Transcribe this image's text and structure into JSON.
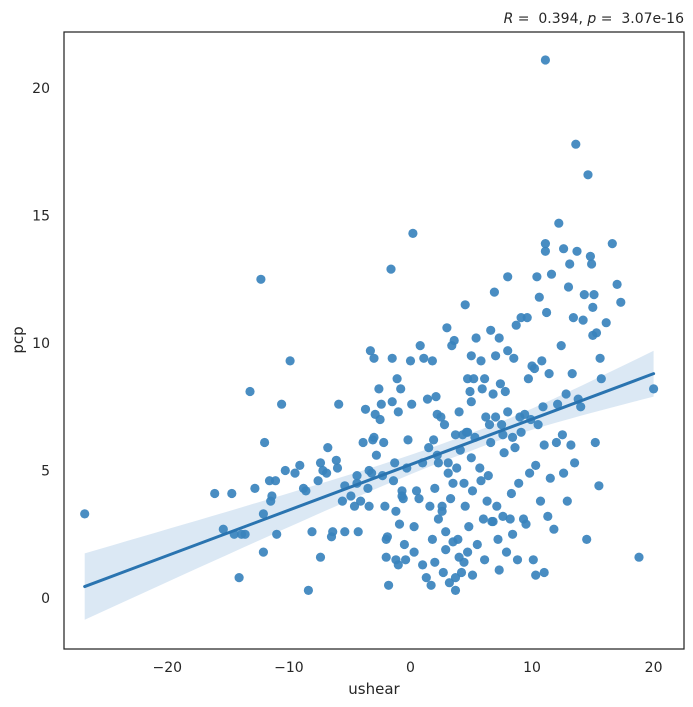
{
  "chart_data": {
    "type": "scatter",
    "title": "R =  0.394, p =  3.07e-16",
    "title_parts": {
      "r_symbol": "R",
      "r_text": " =  0.394, ",
      "p_symbol": "p",
      "p_text": " =  3.07e-16"
    },
    "xlabel": "ushear",
    "ylabel": "pcp",
    "xlim": [
      -28.5,
      22.5
    ],
    "ylim": [
      -2.0,
      22.2
    ],
    "xticks": [
      -20,
      -10,
      0,
      10,
      20
    ],
    "yticks": [
      0,
      5,
      10,
      15,
      20
    ],
    "grid": false,
    "colors": {
      "points": "#3a83bd",
      "line": "#2a74b0",
      "band": "#cfe0f0",
      "axis": "#262626"
    },
    "regression": {
      "x": [
        -26.8,
        20.0
      ],
      "y": [
        0.45,
        8.8
      ],
      "ci_lower": [
        -0.95,
        7.95
      ],
      "ci_upper": [
        1.65,
        9.75
      ],
      "ci_mid_x": 5.0,
      "ci_mid_half_width": 0.35
    },
    "points": [
      [
        -26.8,
        3.3
      ],
      [
        -16.1,
        4.1
      ],
      [
        -15.4,
        2.7
      ],
      [
        -14.7,
        4.1
      ],
      [
        -14.5,
        2.5
      ],
      [
        -14.1,
        0.8
      ],
      [
        -13.9,
        2.5
      ],
      [
        -13.6,
        2.5
      ],
      [
        -13.2,
        8.1
      ],
      [
        -12.8,
        4.3
      ],
      [
        -12.3,
        12.5
      ],
      [
        -12.1,
        1.8
      ],
      [
        -12.1,
        3.3
      ],
      [
        -12.0,
        6.1
      ],
      [
        -11.6,
        4.6
      ],
      [
        -11.5,
        3.8
      ],
      [
        -11.4,
        4.0
      ],
      [
        -11.1,
        4.6
      ],
      [
        -11.0,
        2.5
      ],
      [
        -10.6,
        7.6
      ],
      [
        -10.3,
        5.0
      ],
      [
        -9.9,
        9.3
      ],
      [
        -9.5,
        4.9
      ],
      [
        -9.1,
        5.2
      ],
      [
        -8.8,
        4.3
      ],
      [
        -8.6,
        4.2
      ],
      [
        -8.4,
        0.3
      ],
      [
        -8.1,
        2.6
      ],
      [
        -7.6,
        4.6
      ],
      [
        -7.4,
        5.3
      ],
      [
        -7.4,
        1.6
      ],
      [
        -7.2,
        5.0
      ],
      [
        -6.9,
        4.9
      ],
      [
        -6.8,
        5.9
      ],
      [
        -6.5,
        2.4
      ],
      [
        -6.4,
        2.6
      ],
      [
        -6.1,
        5.4
      ],
      [
        -6.0,
        5.1
      ],
      [
        -5.9,
        7.6
      ],
      [
        -5.6,
        3.8
      ],
      [
        -5.4,
        4.4
      ],
      [
        -5.4,
        2.6
      ],
      [
        -4.9,
        4.0
      ],
      [
        -4.6,
        3.6
      ],
      [
        -4.4,
        4.8
      ],
      [
        -4.4,
        4.5
      ],
      [
        -4.3,
        2.6
      ],
      [
        -4.1,
        3.8
      ],
      [
        -3.9,
        6.1
      ],
      [
        -3.7,
        7.4
      ],
      [
        -3.5,
        4.3
      ],
      [
        -3.4,
        5.0
      ],
      [
        -3.4,
        3.6
      ],
      [
        -3.3,
        9.7
      ],
      [
        -3.2,
        4.9
      ],
      [
        -3.1,
        6.2
      ],
      [
        -3.0,
        6.3
      ],
      [
        -3.0,
        9.4
      ],
      [
        -2.9,
        7.2
      ],
      [
        -2.8,
        5.6
      ],
      [
        -2.6,
        8.2
      ],
      [
        -2.5,
        7.0
      ],
      [
        -2.4,
        7.6
      ],
      [
        -2.3,
        4.8
      ],
      [
        -2.2,
        6.1
      ],
      [
        -2.1,
        3.6
      ],
      [
        -2.0,
        2.3
      ],
      [
        -2.0,
        1.6
      ],
      [
        -1.9,
        2.4
      ],
      [
        -1.8,
        0.5
      ],
      [
        -1.6,
        12.9
      ],
      [
        -1.5,
        9.4
      ],
      [
        -1.5,
        7.7
      ],
      [
        -1.4,
        4.6
      ],
      [
        -1.3,
        5.3
      ],
      [
        -1.2,
        3.4
      ],
      [
        -1.2,
        1.5
      ],
      [
        -1.1,
        8.6
      ],
      [
        -1.0,
        7.3
      ],
      [
        -1.0,
        1.3
      ],
      [
        -0.9,
        2.9
      ],
      [
        -0.8,
        8.2
      ],
      [
        -0.7,
        4.2
      ],
      [
        -0.7,
        4.0
      ],
      [
        -0.6,
        3.9
      ],
      [
        -0.5,
        2.1
      ],
      [
        -0.4,
        1.5
      ],
      [
        -0.3,
        5.1
      ],
      [
        -0.2,
        6.2
      ],
      [
        0.0,
        9.3
      ],
      [
        0.1,
        7.6
      ],
      [
        0.2,
        14.3
      ],
      [
        0.3,
        2.8
      ],
      [
        0.3,
        1.8
      ],
      [
        0.5,
        4.2
      ],
      [
        0.7,
        3.9
      ],
      [
        0.8,
        9.9
      ],
      [
        1.0,
        5.3
      ],
      [
        1.0,
        1.3
      ],
      [
        1.1,
        9.4
      ],
      [
        1.3,
        0.8
      ],
      [
        1.4,
        7.8
      ],
      [
        1.5,
        5.9
      ],
      [
        1.6,
        3.6
      ],
      [
        1.7,
        0.5
      ],
      [
        1.8,
        9.3
      ],
      [
        1.8,
        2.3
      ],
      [
        1.9,
        6.2
      ],
      [
        2.0,
        4.3
      ],
      [
        2.0,
        1.4
      ],
      [
        2.1,
        7.9
      ],
      [
        2.2,
        7.2
      ],
      [
        2.2,
        5.6
      ],
      [
        2.3,
        5.3
      ],
      [
        2.3,
        3.1
      ],
      [
        2.5,
        7.1
      ],
      [
        2.6,
        3.6
      ],
      [
        2.6,
        3.4
      ],
      [
        2.7,
        1.0
      ],
      [
        2.8,
        6.8
      ],
      [
        2.9,
        2.6
      ],
      [
        2.9,
        1.9
      ],
      [
        3.0,
        10.6
      ],
      [
        3.1,
        5.3
      ],
      [
        3.1,
        4.9
      ],
      [
        3.2,
        0.6
      ],
      [
        3.3,
        3.9
      ],
      [
        3.4,
        9.9
      ],
      [
        3.5,
        4.5
      ],
      [
        3.5,
        2.2
      ],
      [
        3.6,
        10.1
      ],
      [
        3.7,
        6.4
      ],
      [
        3.7,
        0.8
      ],
      [
        3.7,
        0.3
      ],
      [
        3.8,
        5.1
      ],
      [
        3.9,
        2.3
      ],
      [
        4.0,
        7.3
      ],
      [
        4.0,
        1.6
      ],
      [
        4.1,
        5.8
      ],
      [
        4.2,
        1.0
      ],
      [
        4.3,
        6.4
      ],
      [
        4.4,
        4.5
      ],
      [
        4.4,
        1.4
      ],
      [
        4.5,
        11.5
      ],
      [
        4.5,
        3.6
      ],
      [
        4.6,
        6.5
      ],
      [
        4.7,
        8.6
      ],
      [
        4.7,
        6.5
      ],
      [
        4.7,
        1.8
      ],
      [
        4.8,
        2.8
      ],
      [
        4.9,
        8.1
      ],
      [
        5.0,
        9.5
      ],
      [
        5.0,
        7.7
      ],
      [
        5.0,
        5.5
      ],
      [
        5.1,
        4.2
      ],
      [
        5.1,
        0.9
      ],
      [
        5.2,
        8.6
      ],
      [
        5.3,
        6.3
      ],
      [
        5.4,
        10.2
      ],
      [
        5.5,
        2.1
      ],
      [
        5.7,
        5.1
      ],
      [
        5.8,
        9.3
      ],
      [
        5.8,
        4.6
      ],
      [
        5.9,
        8.2
      ],
      [
        6.0,
        3.1
      ],
      [
        6.1,
        1.5
      ],
      [
        6.1,
        8.6
      ],
      [
        6.2,
        7.1
      ],
      [
        6.3,
        3.8
      ],
      [
        6.4,
        4.8
      ],
      [
        6.5,
        6.8
      ],
      [
        6.6,
        10.5
      ],
      [
        6.6,
        6.1
      ],
      [
        6.7,
        3.0
      ],
      [
        6.8,
        8.0
      ],
      [
        6.8,
        3.0
      ],
      [
        6.9,
        12.0
      ],
      [
        7.0,
        9.5
      ],
      [
        7.0,
        7.1
      ],
      [
        7.1,
        3.6
      ],
      [
        7.2,
        2.3
      ],
      [
        7.3,
        10.2
      ],
      [
        7.3,
        1.1
      ],
      [
        7.4,
        8.4
      ],
      [
        7.5,
        6.8
      ],
      [
        7.6,
        6.4
      ],
      [
        7.6,
        3.2
      ],
      [
        7.7,
        5.7
      ],
      [
        7.8,
        8.1
      ],
      [
        7.9,
        1.8
      ],
      [
        8.0,
        12.6
      ],
      [
        8.0,
        7.3
      ],
      [
        8.0,
        9.7
      ],
      [
        8.2,
        3.1
      ],
      [
        8.3,
        4.1
      ],
      [
        8.4,
        6.3
      ],
      [
        8.4,
        2.5
      ],
      [
        8.5,
        9.4
      ],
      [
        8.6,
        5.9
      ],
      [
        8.7,
        10.7
      ],
      [
        8.8,
        1.5
      ],
      [
        8.9,
        4.5
      ],
      [
        9.0,
        7.1
      ],
      [
        9.1,
        11.0
      ],
      [
        9.1,
        6.5
      ],
      [
        9.3,
        3.1
      ],
      [
        9.4,
        7.2
      ],
      [
        9.5,
        2.9
      ],
      [
        9.6,
        11.0
      ],
      [
        9.7,
        8.6
      ],
      [
        9.8,
        4.9
      ],
      [
        9.9,
        7.0
      ],
      [
        10.0,
        9.1
      ],
      [
        10.1,
        1.5
      ],
      [
        10.2,
        9.0
      ],
      [
        10.3,
        5.2
      ],
      [
        10.3,
        0.9
      ],
      [
        10.4,
        12.6
      ],
      [
        10.5,
        6.8
      ],
      [
        10.6,
        11.8
      ],
      [
        10.7,
        3.8
      ],
      [
        10.8,
        9.3
      ],
      [
        10.9,
        7.5
      ],
      [
        11.0,
        6.0
      ],
      [
        11.0,
        1.0
      ],
      [
        11.1,
        13.9
      ],
      [
        11.1,
        13.6
      ],
      [
        11.1,
        21.1
      ],
      [
        11.2,
        11.2
      ],
      [
        11.3,
        3.2
      ],
      [
        11.4,
        8.8
      ],
      [
        11.5,
        4.7
      ],
      [
        11.6,
        12.7
      ],
      [
        11.8,
        2.7
      ],
      [
        12.0,
        6.1
      ],
      [
        12.1,
        7.6
      ],
      [
        12.2,
        14.7
      ],
      [
        12.4,
        9.9
      ],
      [
        12.5,
        6.4
      ],
      [
        12.6,
        4.9
      ],
      [
        12.6,
        13.7
      ],
      [
        12.8,
        8.0
      ],
      [
        12.9,
        3.8
      ],
      [
        13.0,
        12.2
      ],
      [
        13.1,
        13.1
      ],
      [
        13.2,
        6.0
      ],
      [
        13.3,
        8.8
      ],
      [
        13.4,
        11.0
      ],
      [
        13.5,
        5.3
      ],
      [
        13.6,
        17.8
      ],
      [
        13.7,
        13.6
      ],
      [
        13.8,
        7.8
      ],
      [
        14.0,
        7.5
      ],
      [
        14.2,
        10.9
      ],
      [
        14.3,
        11.9
      ],
      [
        14.5,
        2.3
      ],
      [
        14.6,
        16.6
      ],
      [
        14.8,
        13.4
      ],
      [
        14.9,
        13.1
      ],
      [
        15.0,
        11.4
      ],
      [
        15.0,
        10.3
      ],
      [
        15.1,
        11.9
      ],
      [
        15.2,
        6.1
      ],
      [
        15.3,
        10.4
      ],
      [
        15.5,
        4.4
      ],
      [
        15.6,
        9.4
      ],
      [
        15.7,
        8.6
      ],
      [
        16.1,
        10.8
      ],
      [
        16.6,
        13.9
      ],
      [
        17.0,
        12.3
      ],
      [
        17.3,
        11.6
      ],
      [
        18.8,
        1.6
      ],
      [
        20.0,
        8.2
      ]
    ]
  }
}
